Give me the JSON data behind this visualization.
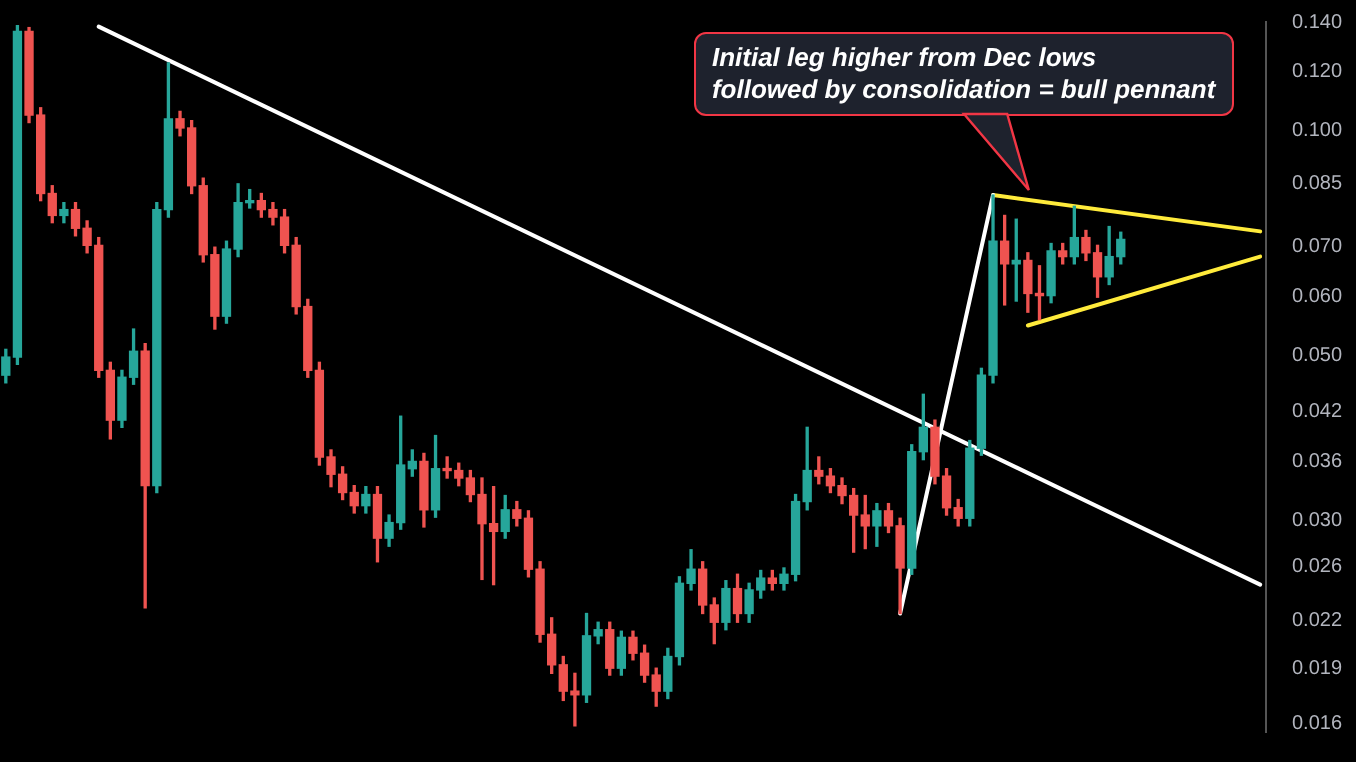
{
  "chart_data": {
    "type": "candlestick",
    "categories": [
      null,
      null,
      null,
      null,
      null,
      null,
      null,
      null,
      null,
      null,
      null,
      null,
      null,
      null,
      null,
      null,
      null,
      null,
      null,
      null,
      null,
      null,
      null,
      null,
      null,
      null,
      null,
      null,
      null,
      null,
      null,
      null,
      null,
      null,
      null,
      null,
      null,
      null,
      null,
      null,
      null,
      null,
      null,
      null,
      null,
      null,
      null,
      null,
      null,
      null,
      null,
      null,
      null,
      null,
      null,
      null,
      null,
      null,
      null,
      null,
      null,
      null,
      null,
      null,
      null,
      null,
      null,
      null,
      null,
      null,
      null,
      null,
      null,
      null,
      null,
      null,
      null,
      null,
      null,
      null,
      null,
      null,
      null,
      null,
      null,
      null,
      null,
      null,
      null,
      null,
      null,
      null,
      null,
      null,
      null,
      null,
      null,
      null,
      null,
      null,
      null,
      null,
      null,
      null,
      null,
      null,
      null,
      null,
      null
    ],
    "ohlc": [
      [
        0.047,
        0.0509,
        0.0459,
        0.0497
      ],
      [
        0.0497,
        0.1384,
        0.0486,
        0.136
      ],
      [
        0.136,
        0.1376,
        0.1026,
        0.105
      ],
      [
        0.105,
        0.1074,
        0.0806,
        0.0824
      ],
      [
        0.0824,
        0.0844,
        0.0753,
        0.077
      ],
      [
        0.077,
        0.0801,
        0.0753,
        0.0784
      ],
      [
        0.0784,
        0.0801,
        0.0723,
        0.074
      ],
      [
        0.074,
        0.0757,
        0.0686,
        0.0702
      ],
      [
        0.0702,
        0.0719,
        0.0467,
        0.0477
      ],
      [
        0.0477,
        0.0489,
        0.0386,
        0.0409
      ],
      [
        0.0409,
        0.0477,
        0.04,
        0.0467
      ],
      [
        0.0467,
        0.0542,
        0.0457,
        0.0506
      ],
      [
        0.0506,
        0.0518,
        0.0229,
        0.0334
      ],
      [
        0.0334,
        0.0801,
        0.0327,
        0.0784
      ],
      [
        0.0784,
        0.1234,
        0.0766,
        0.1038
      ],
      [
        0.1038,
        0.1062,
        0.0985,
        0.1009
      ],
      [
        0.1009,
        0.1032,
        0.0824,
        0.0844
      ],
      [
        0.0844,
        0.0864,
        0.0667,
        0.0682
      ],
      [
        0.0682,
        0.0698,
        0.0542,
        0.0564
      ],
      [
        0.0564,
        0.0711,
        0.0552,
        0.0694
      ],
      [
        0.0694,
        0.0849,
        0.0678,
        0.0801
      ],
      [
        0.0801,
        0.0834,
        0.0788,
        0.0806
      ],
      [
        0.0806,
        0.0824,
        0.0766,
        0.0784
      ],
      [
        0.0784,
        0.0801,
        0.0748,
        0.0766
      ],
      [
        0.0766,
        0.0784,
        0.0686,
        0.0702
      ],
      [
        0.0702,
        0.0719,
        0.0568,
        0.0581
      ],
      [
        0.0581,
        0.0594,
        0.0467,
        0.0477
      ],
      [
        0.0477,
        0.0489,
        0.0356,
        0.0365
      ],
      [
        0.0365,
        0.0373,
        0.0333,
        0.0346
      ],
      [
        0.0346,
        0.0354,
        0.032,
        0.0327
      ],
      [
        0.0327,
        0.0334,
        0.0307,
        0.0314
      ],
      [
        0.0314,
        0.0333,
        0.0307,
        0.0325
      ],
      [
        0.0325,
        0.0333,
        0.0264,
        0.0284
      ],
      [
        0.0284,
        0.0305,
        0.0277,
        0.0298
      ],
      [
        0.0298,
        0.0414,
        0.0292,
        0.0356
      ],
      [
        0.0352,
        0.0373,
        0.0344,
        0.036
      ],
      [
        0.036,
        0.0369,
        0.0294,
        0.031
      ],
      [
        0.031,
        0.039,
        0.0303,
        0.0352
      ],
      [
        0.0352,
        0.0365,
        0.0342,
        0.035
      ],
      [
        0.035,
        0.0358,
        0.0334,
        0.0342
      ],
      [
        0.0342,
        0.035,
        0.0318,
        0.0325
      ],
      [
        0.0325,
        0.0342,
        0.025,
        0.0297
      ],
      [
        0.0297,
        0.0333,
        0.0246,
        0.029
      ],
      [
        0.029,
        0.0324,
        0.0284,
        0.031
      ],
      [
        0.031,
        0.0318,
        0.0295,
        0.0302
      ],
      [
        0.0302,
        0.0309,
        0.0252,
        0.0258
      ],
      [
        0.0258,
        0.0264,
        0.0206,
        0.0211
      ],
      [
        0.0211,
        0.0222,
        0.0187,
        0.0192
      ],
      [
        0.0192,
        0.0197,
        0.0172,
        0.0177
      ],
      [
        0.0177,
        0.0187,
        0.0159,
        0.0175
      ],
      [
        0.0175,
        0.0225,
        0.0171,
        0.021
      ],
      [
        0.021,
        0.0219,
        0.0205,
        0.0214
      ],
      [
        0.0214,
        0.0219,
        0.0186,
        0.019
      ],
      [
        0.019,
        0.0213,
        0.0186,
        0.0209
      ],
      [
        0.0209,
        0.0213,
        0.0195,
        0.0199
      ],
      [
        0.0199,
        0.0204,
        0.0182,
        0.0186
      ],
      [
        0.0186,
        0.019,
        0.0169,
        0.0177
      ],
      [
        0.0177,
        0.0202,
        0.0173,
        0.0197
      ],
      [
        0.0197,
        0.0252,
        0.0192,
        0.0247
      ],
      [
        0.0247,
        0.0274,
        0.0242,
        0.0258
      ],
      [
        0.0258,
        0.0264,
        0.0225,
        0.0231
      ],
      [
        0.0231,
        0.0236,
        0.0205,
        0.0219
      ],
      [
        0.0219,
        0.0249,
        0.0214,
        0.0243
      ],
      [
        0.0243,
        0.0254,
        0.0219,
        0.0225
      ],
      [
        0.0225,
        0.0247,
        0.0219,
        0.0242
      ],
      [
        0.0242,
        0.0257,
        0.0236,
        0.0251
      ],
      [
        0.0251,
        0.0257,
        0.0242,
        0.0247
      ],
      [
        0.0247,
        0.0259,
        0.0242,
        0.0254
      ],
      [
        0.0254,
        0.0325,
        0.0249,
        0.0318
      ],
      [
        0.0318,
        0.04,
        0.031,
        0.035
      ],
      [
        0.035,
        0.0365,
        0.0336,
        0.0344
      ],
      [
        0.0344,
        0.0352,
        0.0327,
        0.0334
      ],
      [
        0.0334,
        0.0342,
        0.0316,
        0.0324
      ],
      [
        0.0324,
        0.0331,
        0.0272,
        0.0305
      ],
      [
        0.0305,
        0.0324,
        0.0275,
        0.0295
      ],
      [
        0.0295,
        0.0316,
        0.0277,
        0.0309
      ],
      [
        0.0309,
        0.0316,
        0.0289,
        0.0295
      ],
      [
        0.0295,
        0.0302,
        0.0225,
        0.0259
      ],
      [
        0.0259,
        0.0379,
        0.0254,
        0.0371
      ],
      [
        0.0371,
        0.0443,
        0.0362,
        0.04
      ],
      [
        0.04,
        0.0409,
        0.0336,
        0.0344
      ],
      [
        0.0344,
        0.0352,
        0.0305,
        0.0312
      ],
      [
        0.0312,
        0.032,
        0.0295,
        0.0302
      ],
      [
        0.0302,
        0.0384,
        0.0295,
        0.0375
      ],
      [
        0.0375,
        0.048,
        0.0367,
        0.047
      ],
      [
        0.047,
        0.082,
        0.0459,
        0.0711
      ],
      [
        0.0711,
        0.077,
        0.0584,
        0.0663
      ],
      [
        0.0663,
        0.0761,
        0.0591,
        0.067
      ],
      [
        0.067,
        0.0686,
        0.0571,
        0.0605
      ],
      [
        0.0605,
        0.0659,
        0.0558,
        0.0601
      ],
      [
        0.0601,
        0.0706,
        0.0588,
        0.069
      ],
      [
        0.069,
        0.0706,
        0.0663,
        0.0678
      ],
      [
        0.0678,
        0.0792,
        0.0663,
        0.0719
      ],
      [
        0.0719,
        0.0735,
        0.067,
        0.0686
      ],
      [
        0.0686,
        0.0702,
        0.0598,
        0.0637
      ],
      [
        0.0637,
        0.0744,
        0.0622,
        0.0678
      ],
      [
        0.0678,
        0.0731,
        0.0663,
        0.0715
      ],
      null,
      null,
      null,
      null,
      null,
      null,
      null,
      null,
      null,
      null,
      null,
      null
    ],
    "colors": [
      "#26a69a",
      "#26a69a",
      "#ef5350",
      "#ef5350",
      "#ef5350",
      "#26a69a",
      "#ef5350",
      "#ef5350",
      "#ef5350",
      "#ef5350",
      "#26a69a",
      "#26a69a",
      "#ef5350",
      "#26a69a",
      "#26a69a",
      "#ef5350",
      "#ef5350",
      "#ef5350",
      "#ef5350",
      "#26a69a",
      "#26a69a",
      "#26a69a",
      "#ef5350",
      "#ef5350",
      "#ef5350",
      "#ef5350",
      "#ef5350",
      "#ef5350",
      "#ef5350",
      "#ef5350",
      "#ef5350",
      "#26a69a",
      "#ef5350",
      "#26a69a",
      "#26a69a",
      "#26a69a",
      "#ef5350",
      "#26a69a",
      "#ef5350",
      "#ef5350",
      "#ef5350",
      "#ef5350",
      "#ef5350",
      "#26a69a",
      "#ef5350",
      "#ef5350",
      "#ef5350",
      "#ef5350",
      "#ef5350",
      "#ef5350",
      "#26a69a",
      "#26a69a",
      "#ef5350",
      "#26a69a",
      "#ef5350",
      "#ef5350",
      "#ef5350",
      "#26a69a",
      "#26a69a",
      "#26a69a",
      "#ef5350",
      "#ef5350",
      "#26a69a",
      "#ef5350",
      "#26a69a",
      "#26a69a",
      "#ef5350",
      "#26a69a",
      "#26a69a",
      "#26a69a",
      "#ef5350",
      "#ef5350",
      "#ef5350",
      "#ef5350",
      "#ef5350",
      "#26a69a",
      "#ef5350",
      "#ef5350",
      "#26a69a",
      "#26a69a",
      "#ef5350",
      "#ef5350",
      "#ef5350",
      "#26a69a",
      "#26a69a",
      "#26a69a",
      "#ef5350",
      "#26a69a",
      "#ef5350",
      "#ef5350",
      "#26a69a",
      "#ef5350",
      "#26a69a",
      "#ef5350",
      "#ef5350",
      "#26a69a",
      "#26a69a",
      null,
      null,
      null,
      null,
      null,
      null,
      null,
      null,
      null,
      null,
      null,
      null
    ],
    "series": [
      {
        "type": "line",
        "color": "#ffffff",
        "values": [
          null,
          null,
          null,
          null,
          null,
          null,
          null,
          null,
          0.138,
          null,
          null,
          null,
          null,
          null,
          null,
          null,
          null,
          null,
          null,
          null,
          null,
          null,
          null,
          null,
          null,
          null,
          null,
          null,
          null,
          null,
          null,
          null,
          null,
          null,
          null,
          null,
          null,
          null,
          null,
          null,
          null,
          null,
          null,
          null,
          null,
          null,
          null,
          null,
          null,
          null,
          null,
          null,
          null,
          null,
          null,
          null,
          null,
          null,
          null,
          null,
          null,
          null,
          null,
          null,
          null,
          null,
          null,
          null,
          null,
          null,
          null,
          null,
          null,
          null,
          null,
          null,
          null,
          null,
          null,
          null,
          null,
          null,
          null,
          null,
          null,
          null,
          null,
          null,
          null,
          null,
          null,
          null,
          null,
          null,
          null,
          null,
          null,
          null,
          null,
          null,
          null,
          null,
          null,
          null,
          null,
          null,
          null,
          null,
          0.0246
        ]
      },
      {
        "type": "line",
        "color": "#ffffff",
        "values": [
          null,
          null,
          null,
          null,
          null,
          null,
          null,
          null,
          null,
          null,
          null,
          null,
          null,
          null,
          null,
          null,
          null,
          null,
          null,
          null,
          null,
          null,
          null,
          null,
          null,
          null,
          null,
          null,
          null,
          null,
          null,
          null,
          null,
          null,
          null,
          null,
          null,
          null,
          null,
          null,
          null,
          null,
          null,
          null,
          null,
          null,
          null,
          null,
          null,
          null,
          null,
          null,
          null,
          null,
          null,
          null,
          null,
          null,
          null,
          null,
          null,
          null,
          null,
          null,
          null,
          null,
          null,
          null,
          null,
          null,
          null,
          null,
          null,
          null,
          null,
          null,
          null,
          0.0225,
          null,
          null,
          null,
          null,
          null,
          null,
          null,
          0.082,
          null,
          null,
          null,
          null,
          null,
          null,
          null,
          null,
          null,
          null,
          null,
          null,
          null,
          null,
          null,
          null,
          null,
          null,
          null,
          null,
          null,
          null,
          null
        ]
      },
      {
        "type": "line",
        "color": "#ffeb3b",
        "values": [
          null,
          null,
          null,
          null,
          null,
          null,
          null,
          null,
          null,
          null,
          null,
          null,
          null,
          null,
          null,
          null,
          null,
          null,
          null,
          null,
          null,
          null,
          null,
          null,
          null,
          null,
          null,
          null,
          null,
          null,
          null,
          null,
          null,
          null,
          null,
          null,
          null,
          null,
          null,
          null,
          null,
          null,
          null,
          null,
          null,
          null,
          null,
          null,
          null,
          null,
          null,
          null,
          null,
          null,
          null,
          null,
          null,
          null,
          null,
          null,
          null,
          null,
          null,
          null,
          null,
          null,
          null,
          null,
          null,
          null,
          null,
          null,
          null,
          null,
          null,
          null,
          null,
          null,
          null,
          null,
          null,
          null,
          null,
          null,
          null,
          0.082,
          null,
          null,
          null,
          null,
          null,
          null,
          null,
          null,
          null,
          null,
          null,
          null,
          null,
          null,
          null,
          null,
          null,
          null,
          null,
          null,
          null,
          null,
          0.0733
        ]
      },
      {
        "type": "line",
        "color": "#ffeb3b",
        "values": [
          null,
          null,
          null,
          null,
          null,
          null,
          null,
          null,
          null,
          null,
          null,
          null,
          null,
          null,
          null,
          null,
          null,
          null,
          null,
          null,
          null,
          null,
          null,
          null,
          null,
          null,
          null,
          null,
          null,
          null,
          null,
          null,
          null,
          null,
          null,
          null,
          null,
          null,
          null,
          null,
          null,
          null,
          null,
          null,
          null,
          null,
          null,
          null,
          null,
          null,
          null,
          null,
          null,
          null,
          null,
          null,
          null,
          null,
          null,
          null,
          null,
          null,
          null,
          null,
          null,
          null,
          null,
          null,
          null,
          null,
          null,
          null,
          null,
          null,
          null,
          null,
          null,
          null,
          null,
          null,
          null,
          null,
          null,
          null,
          null,
          null,
          null,
          null,
          0.0548,
          null,
          null,
          null,
          null,
          null,
          null,
          null,
          null,
          null,
          null,
          null,
          null,
          null,
          null,
          null,
          null,
          null,
          null,
          null,
          0.0678
        ]
      }
    ],
    "ylim": [
      0.0156,
      0.14
    ],
    "yticks": [
      0.016,
      0.019,
      0.022,
      0.026,
      {
        "value": 0.03,
        "label": "0.030"
      },
      0.036,
      0.042,
      {
        "value": 0.05,
        "label": "0.050"
      },
      {
        "value": 0.06,
        "label": "0.060"
      },
      {
        "value": 0.07,
        "label": "0.070"
      },
      0.085,
      {
        "value": 0.1,
        "label": "0.100"
      },
      {
        "value": 0.12,
        "label": "0.120"
      },
      {
        "value": 0.14,
        "label": "0.140"
      }
    ],
    "log": true,
    "tick_labels": "y",
    "annotations": [
      "Initial leg higher from Dec lows\nfollowed by consolidation = bull pennant"
    ]
  }
}
